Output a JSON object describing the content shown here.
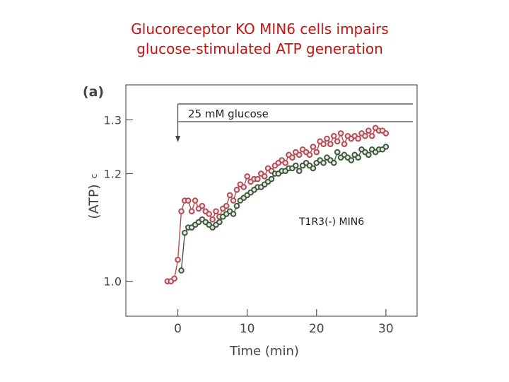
{
  "title_line1": "Glucoreceptor KO MIN6 cells impairs",
  "title_line2": "glucose-stimulated ATP generation",
  "chart_data": {
    "type": "scatter",
    "panel_label": "(a)",
    "xlabel": "Time (min)",
    "ylabel": "(ATP)",
    "ylabel_subscript": "c",
    "xlim": [
      -7.5,
      34.5
    ],
    "ylim": [
      0.935,
      1.365
    ],
    "xticks": [
      0,
      10,
      20,
      30
    ],
    "xtick_labels": [
      "0",
      "10",
      "20",
      "30"
    ],
    "yticks": [
      1.0,
      1.2,
      1.3
    ],
    "ytick_labels": [
      "1.0",
      "1.2",
      "1.3"
    ],
    "grid": false,
    "annotations": [
      {
        "text": "25 mM glucose",
        "kind": "bracket",
        "x": 0
      },
      {
        "text": "T1R3(-) MIN6",
        "kind": "label",
        "x": 20,
        "y": 1.168
      }
    ],
    "series": [
      {
        "color": "#b84a55",
        "x": [
          -1.5,
          -1,
          -0.5,
          0,
          0.5,
          1,
          1.5,
          2,
          2.5,
          3,
          3.5,
          4,
          4.5,
          5,
          5.5,
          6,
          6.5,
          7,
          7.5,
          8,
          8.5,
          9,
          9.5,
          10,
          10.5,
          11,
          11.5,
          12,
          12.5,
          13,
          13.5,
          14,
          14.5,
          15,
          15.5,
          16,
          16.5,
          17,
          17.5,
          18,
          18.5,
          19,
          19.5,
          20,
          20.5,
          21,
          21.5,
          22,
          22.5,
          23,
          23.5,
          24,
          24.5,
          25,
          25.5,
          26,
          26.5,
          27,
          27.5,
          28,
          28.5,
          29,
          29.5,
          30
        ],
        "values": [
          1.0,
          1.0,
          1.005,
          1.04,
          1.13,
          1.15,
          1.15,
          1.13,
          1.15,
          1.135,
          1.14,
          1.13,
          1.125,
          1.115,
          1.13,
          1.12,
          1.135,
          1.14,
          1.16,
          1.15,
          1.17,
          1.18,
          1.175,
          1.195,
          1.185,
          1.19,
          1.19,
          1.2,
          1.195,
          1.21,
          1.205,
          1.215,
          1.22,
          1.225,
          1.22,
          1.235,
          1.23,
          1.24,
          1.235,
          1.245,
          1.24,
          1.235,
          1.25,
          1.24,
          1.26,
          1.255,
          1.265,
          1.255,
          1.27,
          1.26,
          1.275,
          1.255,
          1.27,
          1.265,
          1.27,
          1.265,
          1.275,
          1.27,
          1.28,
          1.27,
          1.285,
          1.28,
          1.28,
          1.275
        ]
      },
      {
        "color": "#3f5a3a",
        "x": [
          0.5,
          1,
          1.5,
          2,
          2.5,
          3,
          3.5,
          4,
          4.5,
          5,
          5.5,
          6,
          6.5,
          7,
          7.5,
          8,
          8.5,
          9,
          9.5,
          10,
          10.5,
          11,
          11.5,
          12,
          12.5,
          13,
          13.5,
          14,
          14.5,
          15,
          15.5,
          16,
          16.5,
          17,
          17.5,
          18,
          18.5,
          19,
          19.5,
          20,
          20.5,
          21,
          21.5,
          22,
          22.5,
          23,
          23.5,
          24,
          24.5,
          25,
          25.5,
          26,
          26.5,
          27,
          27.5,
          28,
          28.5,
          29,
          29.5,
          30
        ],
        "values": [
          1.02,
          1.09,
          1.1,
          1.1,
          1.105,
          1.11,
          1.115,
          1.11,
          1.105,
          1.1,
          1.105,
          1.11,
          1.12,
          1.125,
          1.13,
          1.125,
          1.14,
          1.15,
          1.155,
          1.16,
          1.165,
          1.17,
          1.175,
          1.175,
          1.18,
          1.185,
          1.19,
          1.2,
          1.2,
          1.205,
          1.205,
          1.21,
          1.21,
          1.215,
          1.205,
          1.215,
          1.22,
          1.215,
          1.21,
          1.22,
          1.225,
          1.22,
          1.23,
          1.225,
          1.22,
          1.24,
          1.23,
          1.235,
          1.23,
          1.225,
          1.235,
          1.23,
          1.245,
          1.24,
          1.235,
          1.245,
          1.24,
          1.245,
          1.245,
          1.25
        ]
      }
    ]
  }
}
